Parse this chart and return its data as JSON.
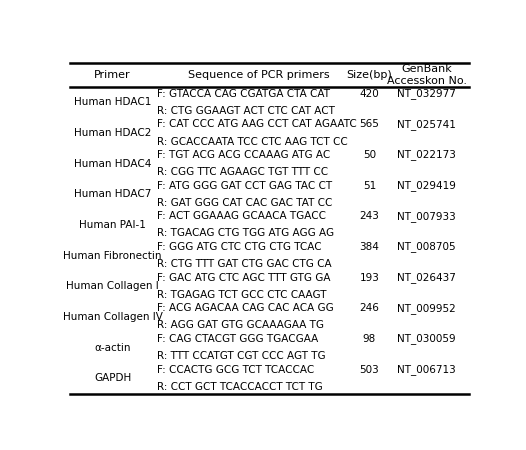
{
  "headers": [
    "Primer",
    "Sequence of PCR primers",
    "Size(bp)",
    "GenBank\nAccesskon No."
  ],
  "rows": [
    {
      "primer": "Human HDAC1",
      "seq_f": "F: GTACCA CAG CGATGA CTA CAT",
      "seq_r": "R: CTG GGAAGT ACT CTC CAT ACT",
      "size": "420",
      "accession": "NT_032977"
    },
    {
      "primer": "Human HDAC2",
      "seq_f": "F: CAT CCC ATG AAG CCT CAT AGAATC",
      "seq_r": "R: GCACCAATA TCC CTC AAG TCT CC",
      "size": "565",
      "accession": "NT_025741"
    },
    {
      "primer": "Human HDAC4",
      "seq_f": "F: TGT ACG ACG CCAAAG ATG AC",
      "seq_r": "R: CGG TTC AGAAGC TGT TTT CC",
      "size": "50",
      "accession": "NT_022173"
    },
    {
      "primer": "Human HDAC7",
      "seq_f": "F: ATG GGG GAT CCT GAG TAC CT",
      "seq_r": "R: GAT GGG CAT CAC GAC TAT CC",
      "size": "51",
      "accession": "NT_029419"
    },
    {
      "primer": "Human PAI-1",
      "seq_f": "F: ACT GGAAAG GCAACA TGACC",
      "seq_r": "R: TGACAG CTG TGG ATG AGG AG",
      "size": "243",
      "accession": "NT_007933"
    },
    {
      "primer": "Human Fibronectin",
      "seq_f": "F: GGG ATG CTC CTG CTG TCAC",
      "seq_r": "R: CTG TTT GAT CTG GAC CTG CA",
      "size": "384",
      "accession": "NT_008705"
    },
    {
      "primer": "Human Collagen I",
      "seq_f": "F: GAC ATG CTC AGC TTT GTG GA",
      "seq_r": "R: TGAGAG TCT GCC CTC CAAGT",
      "size": "193",
      "accession": "NT_026437"
    },
    {
      "primer": "Human Collagen IV",
      "seq_f": "F: ACG AGACAA CAG CAC ACA GG",
      "seq_r": "R: AGG GAT GTG GCAAAGAA TG",
      "size": "246",
      "accession": "NT_009952"
    },
    {
      "primer": "α-actin",
      "seq_f": "F: CAG CTACGT GGG TGACGAA",
      "seq_r": "R: TTT CCATGT CGT CCC AGT TG",
      "size": "98",
      "accession": "NT_030059"
    },
    {
      "primer": "GAPDH",
      "seq_f": "F: CCACTG GCG TCT TCACCAC",
      "seq_r": "R: CCT GCT TCACCACCT TCT TG",
      "size": "503",
      "accession": "NT_006713"
    }
  ],
  "bg_color": "#ffffff",
  "line_color": "#000000",
  "text_color": "#000000",
  "header_fontsize": 8.0,
  "cell_fontsize": 7.5
}
